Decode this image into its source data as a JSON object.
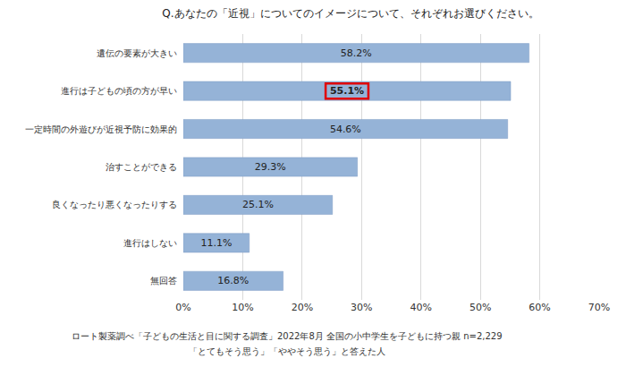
{
  "chart_data": {
    "type": "bar",
    "orientation": "horizontal",
    "title": "Q.あなたの「近視」についてのイメージについて、それぞれお選びください。",
    "categories": [
      "遺伝の要素が大きい",
      "進行は子どもの頃の方が早い",
      "一定時間の外遊びが近視予防に効果的",
      "治すことができる",
      "良くなったり悪くなったりする",
      "進行はしない",
      "無回答"
    ],
    "values": [
      58.2,
      55.1,
      54.6,
      29.3,
      25.1,
      11.1,
      16.8
    ],
    "value_labels": [
      "58.2%",
      "55.1%",
      "54.6%",
      "29.3%",
      "25.1%",
      "11.1%",
      "16.8%"
    ],
    "data_labels": true,
    "color": "#95b3d7",
    "xlim": [
      0,
      70
    ],
    "xticks": [
      {
        "value": 0,
        "label": "0%"
      },
      {
        "value": 10,
        "label": "10%"
      },
      {
        "value": 20,
        "label": "20%"
      },
      {
        "value": 30,
        "label": "30%"
      },
      {
        "value": 40,
        "label": "40%"
      },
      {
        "value": 50,
        "label": "50%"
      },
      {
        "value": 60,
        "label": "60%"
      },
      {
        "value": 70,
        "label": "70%"
      }
    ],
    "grid": true,
    "annotations": [
      "ロート製薬調べ「子どもの生活と目に関する調査」2022年8月 全国の小中学生を子どもに持つ親 n=2,229",
      "「とてもそう思う」「ややそう思う」と答えた人"
    ]
  }
}
